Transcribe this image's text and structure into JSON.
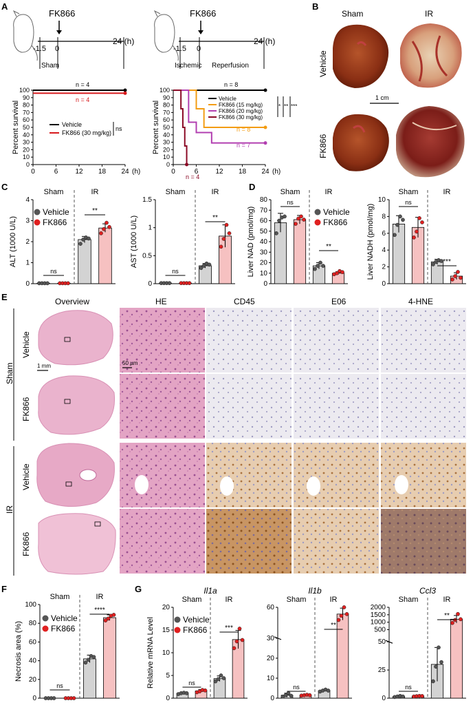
{
  "panels": {
    "A": "A",
    "B": "B",
    "C": "C",
    "D": "D",
    "E": "E",
    "F": "F",
    "G": "G"
  },
  "colors": {
    "vehicle": "#000000",
    "fk866": "#d7191c",
    "fk15": "#f39c12",
    "fk20": "#b23fb0",
    "fk30": "#8b0a26",
    "grey_bar": "#d3d3d3",
    "pink_bar": "#f6c1c1",
    "dot_grey": "#555555",
    "dot_red": "#e02020"
  },
  "a": {
    "drug": "FK866",
    "t_minus": "-1.5",
    "t_zero": "0",
    "t_end": "24 (h)",
    "sham": "Sham",
    "ischemic": "Ischemic",
    "reperfusion": "Reperfusion",
    "ylabel": "Percent survival",
    "n4": "n = 4",
    "n8": "n = 8",
    "n7": "n = 7",
    "ns": "ns",
    "sig1": "*",
    "sig2": "**",
    "sig3": "***",
    "xaxis_unit": "(h)",
    "legend_left": [
      "Vehicle",
      "FK866 (30 mg/kg)"
    ],
    "legend_right": [
      "Vehicle",
      "FK866 (15 mg/kg)",
      "FK866 (20 mg/kg)",
      "FK866 (30 mg/kg)"
    ]
  },
  "b": {
    "sham": "Sham",
    "ir": "IR",
    "vehicle": "Vehicle",
    "fk866": "FK866",
    "scale": "1 cm"
  },
  "c": {
    "sham": "Sham",
    "ir": "IR",
    "ylabel_alt": "ALT (1000 U/L)",
    "ylabel_ast": "AST (1000 U/L)",
    "legend": [
      "Vehicle",
      "FK866"
    ],
    "ns": "ns",
    "sig": "**"
  },
  "d": {
    "sham": "Sham",
    "ir": "IR",
    "ylabel_nad": "Liver NAD (pmol/mg)",
    "ylabel_nadh": "Liver NADH (pmol/mg)",
    "legend": [
      "Vehicle",
      "FK866"
    ],
    "ns": "ns",
    "sig_nad": "**",
    "sig_nadh": "***"
  },
  "e": {
    "cols": [
      "Overview",
      "HE",
      "CD45",
      "E06",
      "4-HNE"
    ],
    "group_sham": "Sham",
    "group_ir": "IR",
    "rows": [
      "Vehicle",
      "FK866",
      "Vehicle",
      "FK866"
    ],
    "scale_overview": "1 mm",
    "scale_micro": "50 µm"
  },
  "f": {
    "sham": "Sham",
    "ir": "IR",
    "ylabel": "Necrosis area (%)",
    "legend": [
      "Vehicle",
      "FK866"
    ],
    "ns": "ns",
    "sig": "****"
  },
  "g": {
    "ylabel": "Relative mRNA Level",
    "genes": [
      "Il1a",
      "Il1b",
      "Ccl3"
    ],
    "sham": "Sham",
    "ir": "IR",
    "legend": [
      "Vehicle",
      "FK866"
    ],
    "ns": "ns",
    "sig": [
      "***",
      "**",
      "**"
    ]
  },
  "chart_data": [
    {
      "id": "A-left",
      "type": "line",
      "title": "",
      "xlabel": "(h)",
      "ylabel": "Percent survival",
      "xlim": [
        0,
        24
      ],
      "ylim": [
        0,
        100
      ],
      "x_ticks": [
        0,
        6,
        12,
        18,
        24
      ],
      "y_ticks": [
        0,
        10,
        20,
        30,
        40,
        50,
        60,
        70,
        80,
        90,
        100
      ],
      "series": [
        {
          "name": "Vehicle",
          "steps": [
            [
              0,
              100
            ],
            [
              24,
              100
            ]
          ]
        },
        {
          "name": "FK866 (30 mg/kg)",
          "steps": [
            [
              0,
              96
            ],
            [
              24,
              96
            ]
          ]
        }
      ]
    },
    {
      "id": "A-right",
      "type": "line",
      "title": "",
      "xlabel": "(h)",
      "ylabel": "Percent survival",
      "xlim": [
        0,
        24
      ],
      "ylim": [
        0,
        100
      ],
      "x_ticks": [
        0,
        6,
        12,
        18,
        24
      ],
      "y_ticks": [
        0,
        10,
        20,
        30,
        40,
        50,
        60,
        70,
        80,
        90,
        100
      ],
      "series": [
        {
          "name": "Vehicle",
          "steps": [
            [
              0,
              100
            ],
            [
              24,
              100
            ]
          ]
        },
        {
          "name": "FK866 (15 mg/kg)",
          "steps": [
            [
              0,
              100
            ],
            [
              6,
              100
            ],
            [
              6,
              75
            ],
            [
              8,
              75
            ],
            [
              8,
              50
            ],
            [
              24,
              50
            ]
          ]
        },
        {
          "name": "FK866 (20 mg/kg)",
          "steps": [
            [
              0,
              100
            ],
            [
              4,
              100
            ],
            [
              4,
              57
            ],
            [
              6,
              57
            ],
            [
              6,
              43
            ],
            [
              10,
              43
            ],
            [
              10,
              29
            ],
            [
              24,
              29
            ]
          ]
        },
        {
          "name": "FK866 (30 mg/kg)",
          "steps": [
            [
              0,
              100
            ],
            [
              2,
              100
            ],
            [
              2,
              75
            ],
            [
              2.5,
              75
            ],
            [
              2.5,
              50
            ],
            [
              3,
              50
            ],
            [
              3,
              25
            ],
            [
              3.5,
              25
            ],
            [
              3.5,
              0
            ]
          ]
        }
      ]
    },
    {
      "id": "C-ALT",
      "type": "bar",
      "ylabel": "ALT (1000 U/L)",
      "ylim": [
        0,
        4
      ],
      "y_ticks": [
        0,
        1,
        2,
        3,
        4
      ],
      "categories": [
        "Sham Vehicle",
        "Sham FK866",
        "IR Vehicle",
        "IR FK866"
      ],
      "values": [
        0.02,
        0.02,
        2.1,
        2.65
      ],
      "errors": [
        0.01,
        0.01,
        0.15,
        0.2
      ],
      "points": [
        [
          0.02,
          0.02,
          0.02,
          0.02
        ],
        [
          0.02,
          0.02,
          0.02,
          0.02
        ],
        [
          1.9,
          2.1,
          2.2,
          2.15
        ],
        [
          2.4,
          2.6,
          2.9,
          2.7
        ]
      ]
    },
    {
      "id": "C-AST",
      "type": "bar",
      "ylabel": "AST (1000 U/L)",
      "ylim": [
        0,
        1.5
      ],
      "y_ticks": [
        0,
        0.5,
        1.0,
        1.5
      ],
      "categories": [
        "Sham Vehicle",
        "Sham FK866",
        "IR Vehicle",
        "IR FK866"
      ],
      "values": [
        0.01,
        0.01,
        0.32,
        0.85
      ],
      "errors": [
        0.005,
        0.005,
        0.04,
        0.2
      ],
      "points": [
        [
          0.01,
          0.01,
          0.01,
          0.01
        ],
        [
          0.01,
          0.01,
          0.01,
          0.01
        ],
        [
          0.28,
          0.32,
          0.36,
          0.34
        ],
        [
          0.66,
          0.8,
          1.05,
          0.9
        ]
      ]
    },
    {
      "id": "D-NAD",
      "type": "bar",
      "ylabel": "Liver NAD (pmol/mg)",
      "ylim": [
        0,
        80
      ],
      "y_ticks": [
        0,
        10,
        20,
        30,
        40,
        50,
        60,
        70,
        80
      ],
      "categories": [
        "Sham Vehicle",
        "Sham FK866",
        "IR Vehicle",
        "IR FK866"
      ],
      "values": [
        58,
        61,
        17,
        10
      ],
      "errors": [
        9,
        4,
        3,
        1.5
      ],
      "points": [
        [
          48,
          60,
          63,
          64
        ],
        [
          57,
          62,
          64,
          61
        ],
        [
          14,
          17,
          20,
          17
        ],
        [
          9,
          10,
          12,
          11
        ]
      ]
    },
    {
      "id": "D-NADH",
      "type": "bar",
      "ylabel": "Liver NADH (pmol/mg)",
      "ylim": [
        0,
        10
      ],
      "y_ticks": [
        0,
        2,
        4,
        6,
        8,
        10
      ],
      "categories": [
        "Sham Vehicle",
        "Sham FK866",
        "IR Vehicle",
        "IR FK866"
      ],
      "values": [
        7.1,
        6.7,
        2.6,
        0.9
      ],
      "errors": [
        1.0,
        1.2,
        0.3,
        0.4
      ],
      "points": [
        [
          5.8,
          7.0,
          8.0,
          7.6
        ],
        [
          5.5,
          6.2,
          7.8,
          7.3
        ],
        [
          2.3,
          2.6,
          2.8,
          2.7
        ],
        [
          0.5,
          0.9,
          1.4,
          0.7
        ]
      ]
    },
    {
      "id": "F",
      "type": "bar",
      "ylabel": "Necrosis area (%)",
      "ylim": [
        0,
        100
      ],
      "y_ticks": [
        0,
        20,
        40,
        60,
        80,
        100
      ],
      "categories": [
        "Sham Vehicle",
        "Sham FK866",
        "IR Vehicle",
        "IR FK866"
      ],
      "values": [
        0,
        0,
        42,
        86
      ],
      "errors": [
        0,
        0,
        4,
        3
      ],
      "points": [
        [
          0,
          0,
          0,
          0
        ],
        [
          0,
          0,
          0,
          0
        ],
        [
          38,
          41,
          45,
          44
        ],
        [
          83,
          85,
          88,
          89
        ]
      ]
    },
    {
      "id": "G-Il1a",
      "type": "bar",
      "title": "Il1a",
      "ylabel": "Relative mRNA Level",
      "ylim": [
        0,
        20
      ],
      "y_ticks": [
        0,
        5,
        10,
        15,
        20
      ],
      "categories": [
        "Sham Vehicle",
        "Sham FK866",
        "IR Vehicle",
        "IR FK866"
      ],
      "values": [
        1.1,
        1.6,
        4.3,
        12.9
      ],
      "errors": [
        0.2,
        0.3,
        0.6,
        2.0
      ],
      "points": [
        [
          0.9,
          1.1,
          1.2,
          1.1
        ],
        [
          1.3,
          1.5,
          1.8,
          1.7
        ],
        [
          3.7,
          4.2,
          5.0,
          4.4
        ],
        [
          11.0,
          12.5,
          15.3,
          12.8
        ]
      ]
    },
    {
      "id": "G-Il1b",
      "type": "bar",
      "title": "Il1b",
      "ylabel": "",
      "ylim": [
        0,
        60
      ],
      "y_ticks": [
        0,
        10,
        20,
        30,
        60
      ],
      "broken_axis": true,
      "categories": [
        "Sham Vehicle",
        "Sham FK866",
        "IR Vehicle",
        "IR FK866"
      ],
      "values": [
        1.5,
        1.5,
        3.8,
        52
      ],
      "errors": [
        1.0,
        0.4,
        0.5,
        7
      ],
      "points": [
        [
          0.8,
          1.5,
          2.5,
          1.2
        ],
        [
          1.3,
          1.5,
          1.7,
          1.5
        ],
        [
          3.3,
          3.8,
          4.3,
          3.8
        ],
        [
          45,
          50,
          60,
          52
        ]
      ]
    },
    {
      "id": "G-Ccl3",
      "type": "bar",
      "title": "Ccl3",
      "ylabel": "",
      "ylim": [
        0,
        2000
      ],
      "y_ticks": [
        0,
        25,
        50,
        500,
        1000,
        1500,
        2000
      ],
      "broken_axis": true,
      "categories": [
        "Sham Vehicle",
        "Sham FK866",
        "IR Vehicle",
        "IR FK866"
      ],
      "values": [
        1.5,
        1.8,
        30,
        1200
      ],
      "errors": [
        0.6,
        0.4,
        15,
        250
      ],
      "points": [
        [
          1,
          1.5,
          2,
          1.5
        ],
        [
          1.5,
          1.8,
          2,
          1.9
        ],
        [
          15,
          28,
          45,
          32
        ],
        [
          950,
          1150,
          1550,
          1200
        ]
      ]
    }
  ]
}
